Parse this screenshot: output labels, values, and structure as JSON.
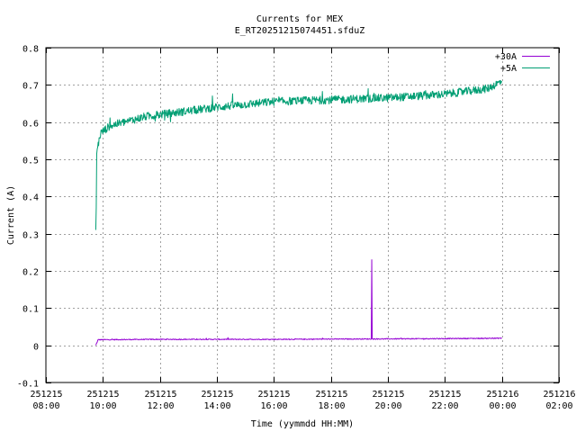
{
  "chart_data": {
    "type": "line",
    "title": "Currents for MEX",
    "subtitle": "E_RT20251215074451.sfduZ",
    "xlabel": "Time (yymmdd HH:MM)",
    "ylabel": "Current (A)",
    "xlim": [
      "2025-12-15 08:00",
      "2025-12-16 02:00"
    ],
    "ylim": [
      -0.1,
      0.8
    ],
    "grid": true,
    "legend_position": "top-right",
    "x_ticks": [
      {
        "date": "251215",
        "time": "08:00"
      },
      {
        "date": "251215",
        "time": "10:00"
      },
      {
        "date": "251215",
        "time": "12:00"
      },
      {
        "date": "251215",
        "time": "14:00"
      },
      {
        "date": "251215",
        "time": "16:00"
      },
      {
        "date": "251215",
        "time": "18:00"
      },
      {
        "date": "251215",
        "time": "20:00"
      },
      {
        "date": "251215",
        "time": "22:00"
      },
      {
        "date": "251216",
        "time": "00:00"
      },
      {
        "date": "251216",
        "time": "02:00"
      }
    ],
    "y_ticks": [
      "-0.1",
      "0",
      "0.1",
      "0.2",
      "0.3",
      "0.4",
      "0.5",
      "0.6",
      "0.7",
      "0.8"
    ],
    "series": [
      {
        "name": "+30A",
        "color": "#9400d3",
        "points": [
          [
            "2025-12-15 09:45",
            0.0
          ],
          [
            "2025-12-15 09:50",
            0.015
          ],
          [
            "2025-12-15 12:00",
            0.016
          ],
          [
            "2025-12-15 16:00",
            0.016
          ],
          [
            "2025-12-15 19:00",
            0.017
          ],
          [
            "2025-12-15 19:25",
            0.017
          ],
          [
            "2025-12-15 19:26",
            0.23
          ],
          [
            "2025-12-15 19:27",
            0.017
          ],
          [
            "2025-12-15 22:00",
            0.018
          ],
          [
            "2025-12-16 00:00",
            0.019
          ]
        ]
      },
      {
        "name": "+5A",
        "color": "#009e73",
        "points": [
          [
            "2025-12-15 09:45",
            0.31
          ],
          [
            "2025-12-15 09:46",
            0.37
          ],
          [
            "2025-12-15 09:47",
            0.52
          ],
          [
            "2025-12-15 09:55",
            0.57
          ],
          [
            "2025-12-15 10:15",
            0.59
          ],
          [
            "2025-12-15 10:45",
            0.6
          ],
          [
            "2025-12-15 11:30",
            0.615
          ],
          [
            "2025-12-15 12:30",
            0.625
          ],
          [
            "2025-12-15 14:00",
            0.64
          ],
          [
            "2025-12-15 16:00",
            0.655
          ],
          [
            "2025-12-15 18:00",
            0.66
          ],
          [
            "2025-12-15 20:00",
            0.665
          ],
          [
            "2025-12-15 22:00",
            0.675
          ],
          [
            "2025-12-15 23:30",
            0.69
          ],
          [
            "2025-12-16 00:00",
            0.71
          ]
        ]
      }
    ]
  }
}
